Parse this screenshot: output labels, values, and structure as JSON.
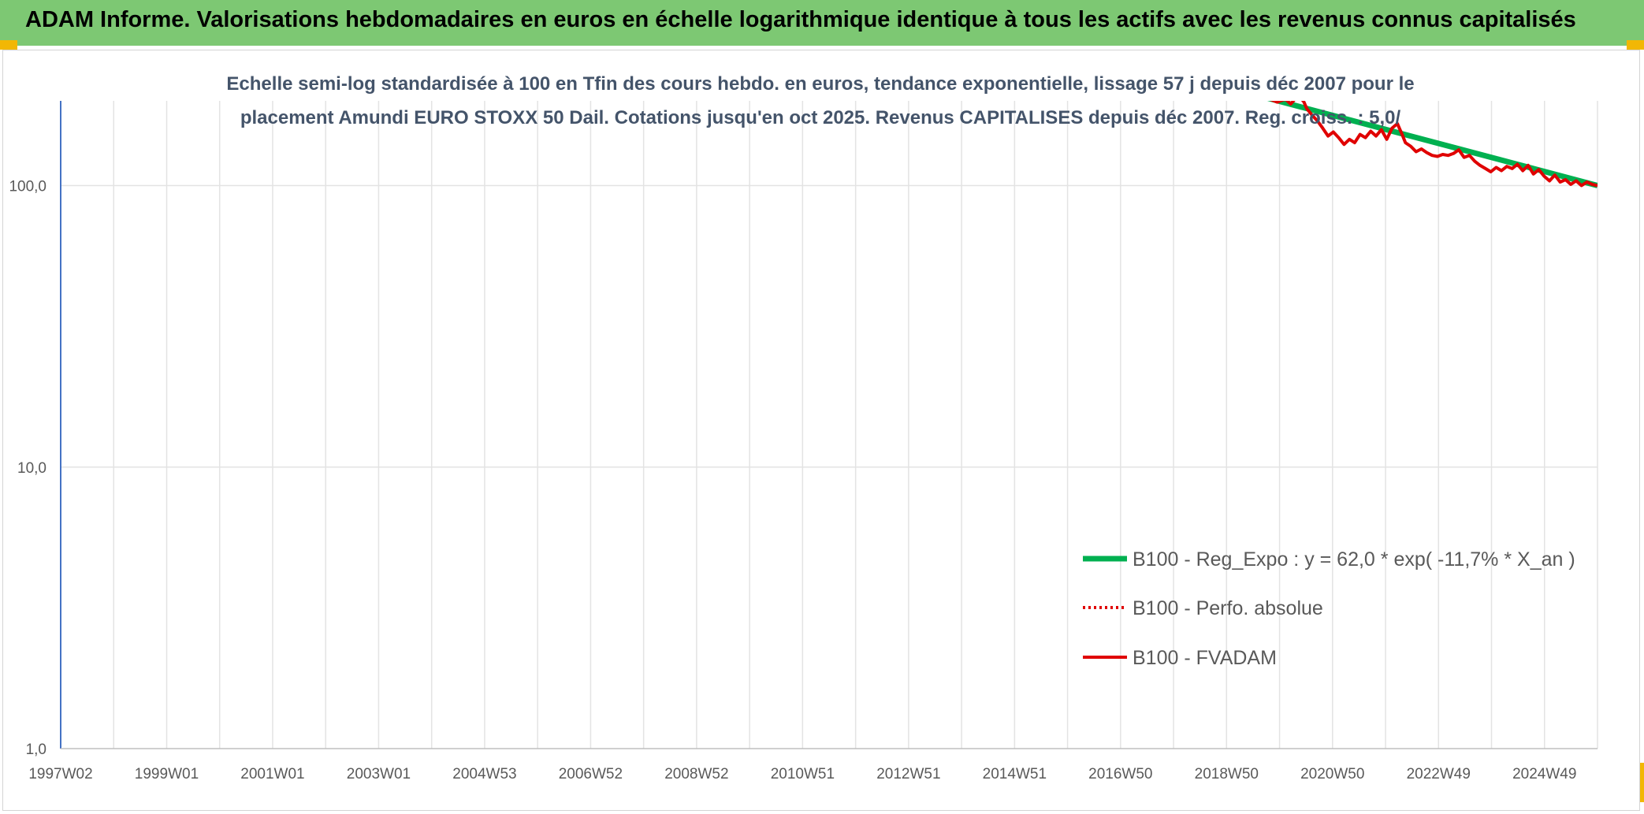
{
  "header": {
    "title": "ADAM Informe. Valorisations hebdomadaires en euros en échelle logarithmique identique à tous les actifs avec les revenus connus capitalisés"
  },
  "colors": {
    "header_bg": "#7dc873",
    "trend": "#00b050",
    "price": "#e00000",
    "title_text": "#44546a",
    "corner_accent": "#f2b705"
  },
  "chart_data": {
    "type": "line",
    "title_lines": [
      "Echelle semi-log standardisée à 100 en Tfin des cours hebdo. en euros, tendance exponentielle, lissage 57 j depuis déc 2007 pour le",
      "placement Amundi EURO STOXX 50 Dail. Cotations jusqu'en oct 2025. Revenus CAPITALISES depuis déc 2007. Reg. croiss. : 5,0/"
    ],
    "y_scale": "log",
    "ylim": [
      1,
      200
    ],
    "y_ticks": [
      "1,0",
      "10,0",
      "100,0"
    ],
    "x_range": [
      1997.0,
      2025.8
    ],
    "x_tick_labels": [
      "1997W02",
      "1999W01",
      "2001W01",
      "2003W01",
      "2004W53",
      "2006W52",
      "2008W52",
      "2010W51",
      "2012W51",
      "2014W51",
      "2016W50",
      "2018W50",
      "2020W50",
      "2022W49",
      "2024W49"
    ],
    "grid": true,
    "legend_position": "bottom-right",
    "series": [
      {
        "name": "B100 - Reg_Expo : y = 62,0 * exp( -11,7% *  X_an )",
        "style": "solid-thick",
        "x": [
          2019.6,
          2025.8
        ],
        "y": [
          205,
          100
        ]
      },
      {
        "name": "B100 - Perfo. absolue",
        "style": "dotted",
        "x": [],
        "y": []
      },
      {
        "name": "B100 - FVADAM",
        "style": "solid",
        "x": [
          2019.6,
          2019.8,
          2019.95,
          2020.05,
          2020.1,
          2020.2,
          2020.3,
          2020.35,
          2020.45,
          2020.55,
          2020.65,
          2020.75,
          2020.85,
          2020.95,
          2021.05,
          2021.15,
          2021.25,
          2021.35,
          2021.45,
          2021.55,
          2021.65,
          2021.75,
          2021.85,
          2021.95,
          2022.05,
          2022.15,
          2022.2,
          2022.3,
          2022.4,
          2022.5,
          2022.6,
          2022.7,
          2022.8,
          2022.9,
          2023.0,
          2023.1,
          2023.2,
          2023.3,
          2023.4,
          2023.5,
          2023.6,
          2023.7,
          2023.8,
          2023.9,
          2024.0,
          2024.1,
          2024.2,
          2024.3,
          2024.4,
          2024.5,
          2024.6,
          2024.7,
          2024.8,
          2024.9,
          2025.0,
          2025.1,
          2025.2,
          2025.3,
          2025.4,
          2025.5,
          2025.6,
          2025.7,
          2025.8
        ],
        "y": [
          205,
          198,
          203,
          195,
          200,
          210,
          198,
          188,
          178,
          170,
          160,
          150,
          155,
          148,
          140,
          146,
          142,
          152,
          148,
          156,
          150,
          158,
          146,
          160,
          166,
          150,
          142,
          138,
          132,
          135,
          131,
          128,
          127,
          129,
          128,
          130,
          134,
          126,
          128,
          122,
          118,
          115,
          112,
          116,
          113,
          117,
          115,
          119,
          113,
          118,
          110,
          114,
          108,
          104,
          109,
          103,
          105,
          101,
          104,
          100,
          103,
          101,
          100
        ]
      }
    ]
  }
}
